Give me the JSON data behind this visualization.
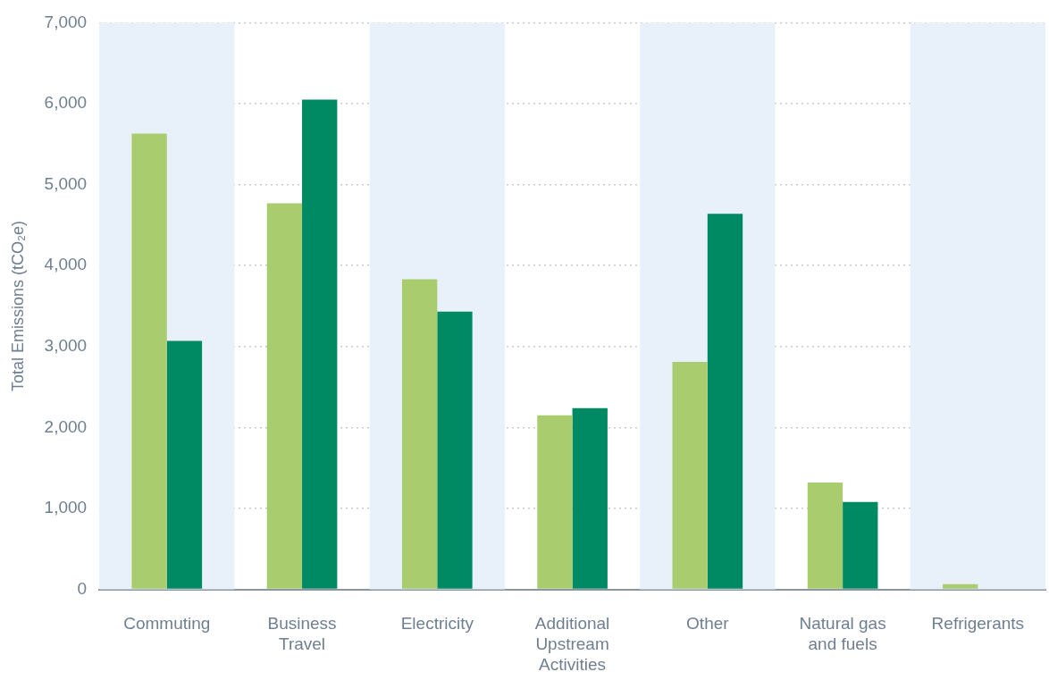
{
  "chart_data": {
    "type": "bar",
    "ylabel": "Total Emissions (tCO₂e)",
    "categories": [
      "Commuting",
      "Business Travel",
      "Electricity",
      "Additional Upstream Activities",
      "Other",
      "Natural gas and fuels",
      "Refrigerants"
    ],
    "series": [
      {
        "color": "#a9cd6e",
        "values": [
          5630,
          4770,
          3830,
          2150,
          2810,
          1320,
          65
        ]
      },
      {
        "color": "#008a64",
        "values": [
          3070,
          6050,
          3430,
          2240,
          4640,
          1080,
          null
        ]
      }
    ],
    "ylim": [
      0,
      7000
    ],
    "yticks": [
      {
        "value": 0,
        "label": "0"
      },
      {
        "value": 1000,
        "label": "1,000"
      },
      {
        "value": 2000,
        "label": "2,000"
      },
      {
        "value": 3000,
        "label": "3,000"
      },
      {
        "value": 4000,
        "label": "4,000"
      },
      {
        "value": 5000,
        "label": "5,000"
      },
      {
        "value": 6000,
        "label": "6,000"
      },
      {
        "value": 7000,
        "label": "7,000"
      }
    ],
    "grid": "y",
    "bands": [
      {
        "axis": "x",
        "from": "Commuting",
        "to": "Commuting",
        "color": "#e8f0fa"
      },
      {
        "axis": "x",
        "from": "Electricity",
        "to": "Electricity",
        "color": "#e8f0fa"
      },
      {
        "axis": "x",
        "from": "Other",
        "to": "Other",
        "color": "#e8f0fa"
      },
      {
        "axis": "x",
        "from": "Refrigerants",
        "to": "Refrigerants",
        "color": "#e8f0fa"
      }
    ]
  }
}
